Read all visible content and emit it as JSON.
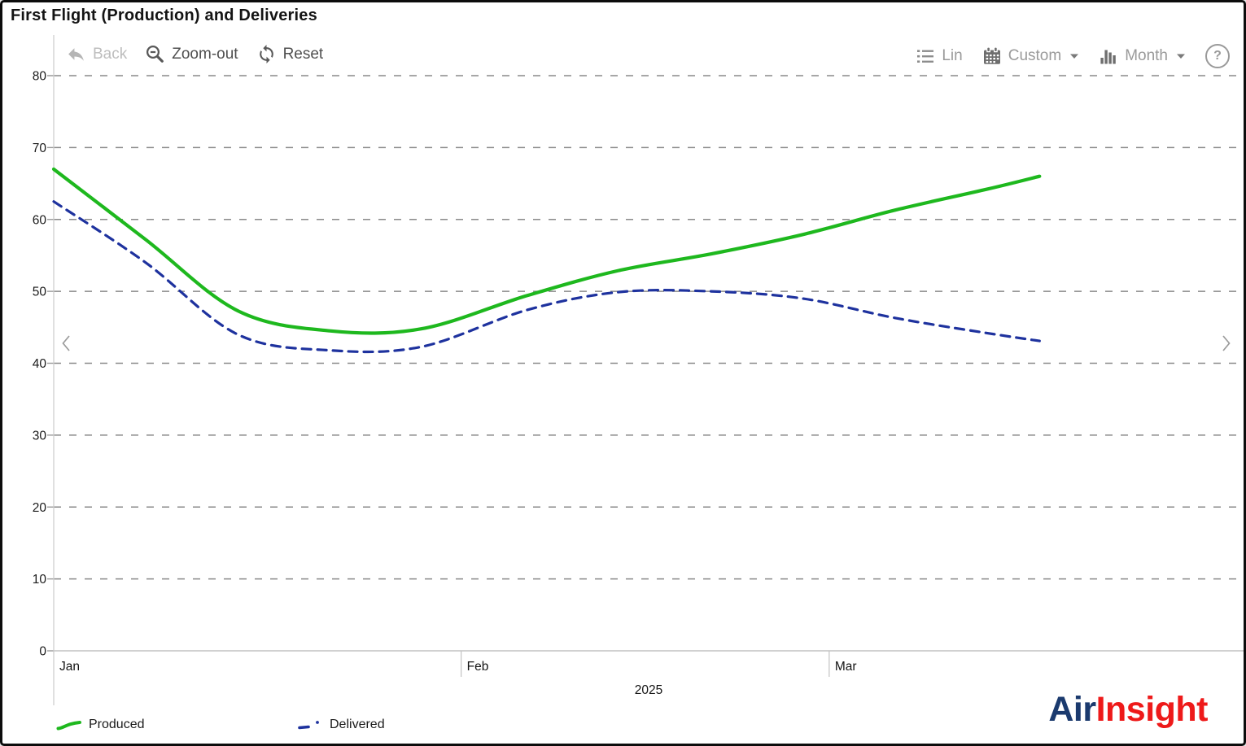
{
  "window": {
    "title": "First Flight (Production) and Deliveries"
  },
  "toolbar": {
    "left": [
      {
        "label": "Back",
        "icon": "undo-arrow",
        "state": "disabled"
      },
      {
        "label": "Zoom-out",
        "icon": "magnifier-minus",
        "state": "enabled"
      },
      {
        "label": "Reset",
        "icon": "circular-arrows",
        "state": "enabled"
      }
    ],
    "right": [
      {
        "label": "Lin",
        "icon": "list-icon"
      },
      {
        "label": "Custom",
        "icon": "calendar-icon",
        "has_dropdown": true
      },
      {
        "label": "Month",
        "icon": "column-chart-icon",
        "has_dropdown": true
      },
      {
        "label": "?",
        "icon": "help-circle-icon"
      }
    ]
  },
  "legend": {
    "items": [
      "Produced",
      "Delivered"
    ]
  },
  "logo": {
    "part1": "Air",
    "part2": "Insight",
    "part1_color": "#1b3a6e",
    "part2_color": "#ee1a1a"
  },
  "chart_data": {
    "type": "line",
    "title": "First Flight (Production) and Deliveries",
    "x_axis": {
      "unit": "date",
      "year_label": "2025",
      "ticks": [
        {
          "label": "Jan",
          "day": 0
        },
        {
          "label": "Feb",
          "day": 31
        },
        {
          "label": "Mar",
          "day": 59
        }
      ],
      "domain_days": [
        0,
        90
      ]
    },
    "y_axis": {
      "min": 0,
      "max": 80,
      "step": 10
    },
    "grid": "dashed-horizontal",
    "legend_position": "bottom-left",
    "series": [
      {
        "name": "Produced",
        "color": "#1eb81e",
        "line_style": "solid",
        "points": [
          [
            0,
            67.0
          ],
          [
            7,
            57.2
          ],
          [
            14,
            47.3
          ],
          [
            21,
            44.5
          ],
          [
            28,
            44.8
          ],
          [
            36,
            49.4
          ],
          [
            43,
            52.9
          ],
          [
            50,
            55.2
          ],
          [
            57,
            57.9
          ],
          [
            64,
            61.3
          ],
          [
            71,
            64.2
          ],
          [
            75,
            66.0
          ]
        ]
      },
      {
        "name": "Delivered",
        "color": "#1e329e",
        "line_style": "dashed",
        "points": [
          [
            0,
            62.5
          ],
          [
            7,
            54.0
          ],
          [
            14,
            44.0
          ],
          [
            21,
            41.8
          ],
          [
            28,
            42.3
          ],
          [
            36,
            47.4
          ],
          [
            43,
            49.9
          ],
          [
            50,
            50.0
          ],
          [
            57,
            49.0
          ],
          [
            64,
            46.3
          ],
          [
            71,
            44.2
          ],
          [
            75,
            43.1
          ]
        ]
      }
    ]
  }
}
